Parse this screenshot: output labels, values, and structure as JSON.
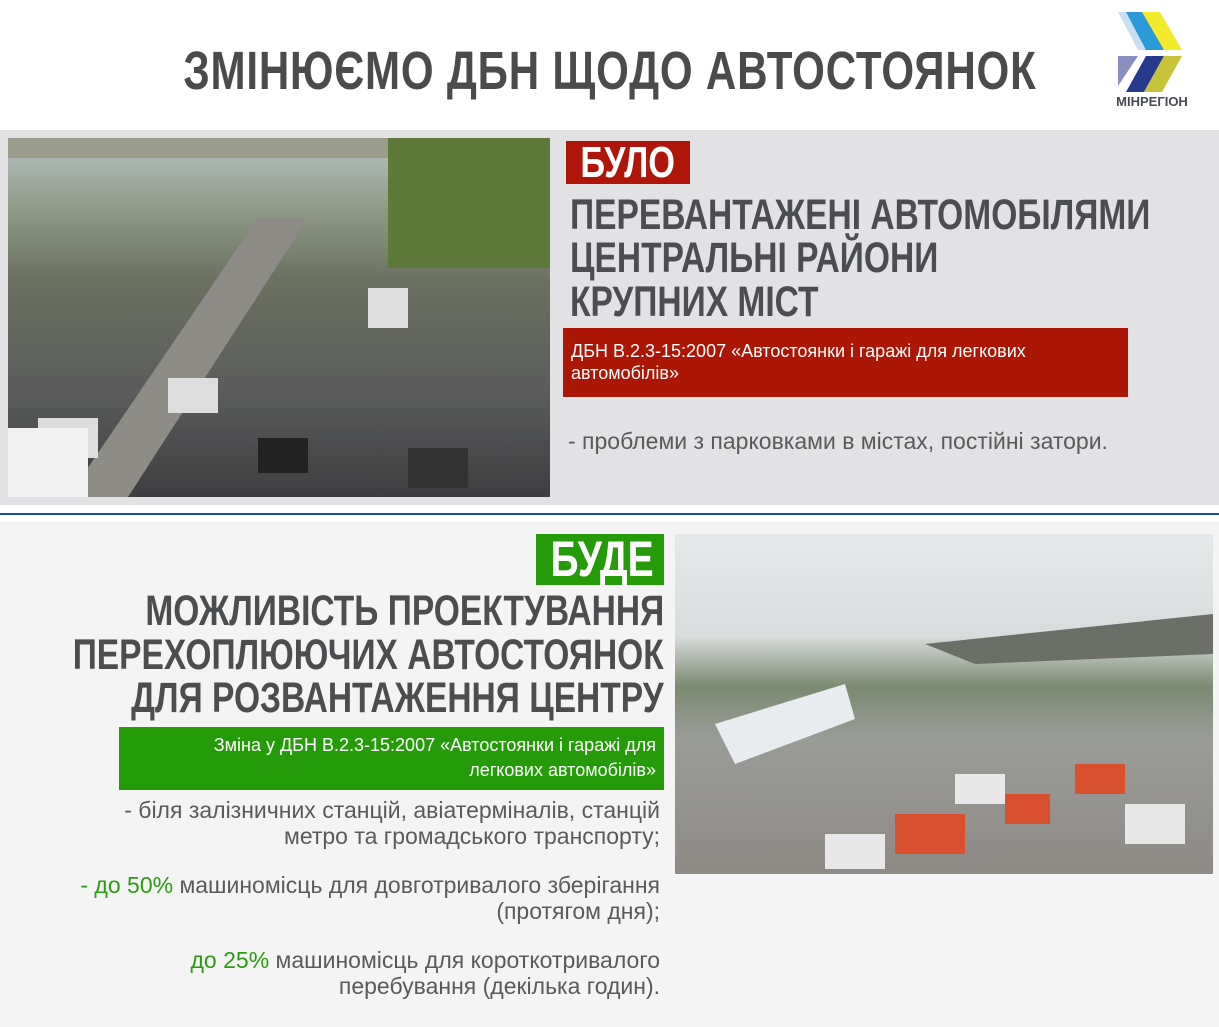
{
  "header": {
    "title": "ЗМІНЮЄМО ДБН ЩОДО АВТОСТОЯНОК",
    "logo_text": "МІНРЕГІОН"
  },
  "before": {
    "badge": "БУЛО",
    "heading": [
      "ПЕРЕВАНТАЖЕНІ АВТОМОБІЛЯМИ",
      "ЦЕНТРАЛЬНІ РАЙОНИ",
      "КРУПНИХ МІСТ"
    ],
    "norm": "ДБН В.2.3-15:2007 «Автостоянки і гаражі для легкових автомобілів»",
    "bullet": "- проблеми з парковками в містах, постійні затори.",
    "photo": "traffic-jam-photo"
  },
  "after": {
    "badge": "БУДЕ",
    "heading": [
      "МОЖЛИВІСТЬ ПРОЕКТУВАННЯ",
      "ПЕРЕХОПЛЮЮЧИХ АВТОСТОЯНОК",
      "ДЛЯ РОЗВАНТАЖЕННЯ ЦЕНТРУ"
    ],
    "norm_line1": "Зміна у ДБН В.2.3-15:2007 «Автостоянки і гаражі для",
    "norm_line2": "легкових автомобілів»",
    "item1_line1": "- біля залізничних станцій, авіатерміналів, станцій",
    "item1_line2": "метро та громадського транспорту;",
    "item2_highlight": "- до 50%",
    "item2_rest": " машиномісць для довготривалого зберігання",
    "item2_line2": "(протягом дня);",
    "item3_highlight": "до 25%",
    "item3_rest": " машиномісць для короткотривалого",
    "item3_line2": "перебування (декілька годин).",
    "photo": "park-and-ride-photo"
  },
  "colors": {
    "red": "#b01509",
    "green": "#269b0a",
    "blue_line": "#1a4fa3",
    "text_gray": "#4b4d4f"
  }
}
